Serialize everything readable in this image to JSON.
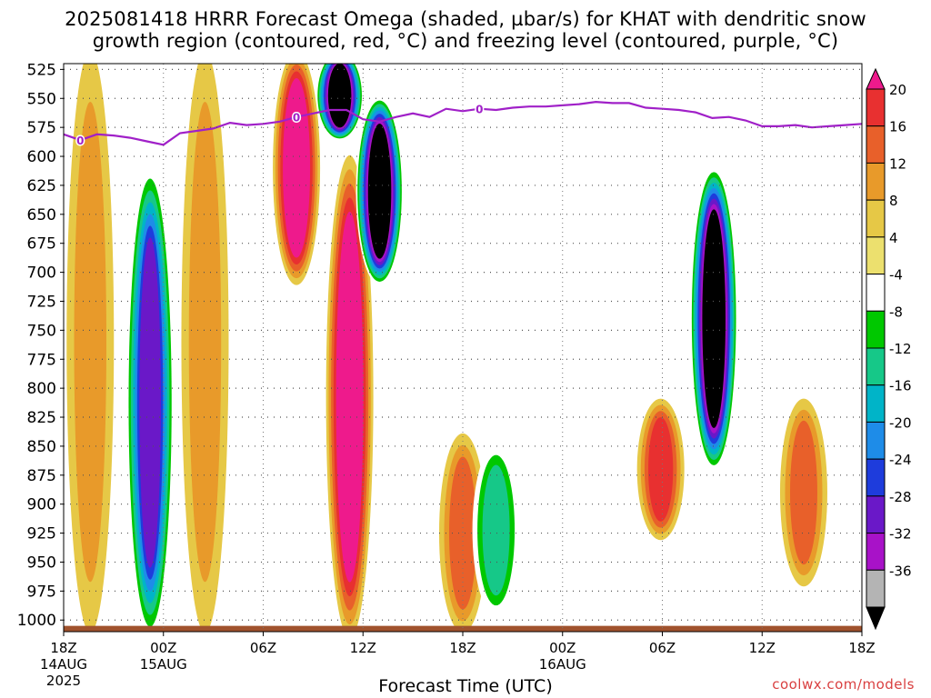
{
  "title_line1": "2025081418 HRRR Forecast Omega (shaded, µbar/s) for KHAT with dendritic snow",
  "title_line2": "growth region (contoured, red, °C) and freezing level (contoured, purple, °C)",
  "xlabel": "Forecast Time (UTC)",
  "credit": "coolwx.com/models",
  "chart_data": {
    "type": "heatmap",
    "title": "2025081418 HRRR Forecast Omega (shaded, µbar/s) for KHAT with dendritic snow growth region (contoured, red, °C) and freezing level (contoured, purple, °C)",
    "xlabel": "Forecast Time (UTC)",
    "ylabel": "",
    "x_range_hours": [
      0,
      48
    ],
    "x_ticks": [
      {
        "hour": 0,
        "label": "18Z",
        "sub": [
          "14AUG",
          "2025"
        ]
      },
      {
        "hour": 6,
        "label": "00Z",
        "sub": [
          "15AUG"
        ]
      },
      {
        "hour": 12,
        "label": "06Z",
        "sub": []
      },
      {
        "hour": 18,
        "label": "12Z",
        "sub": []
      },
      {
        "hour": 24,
        "label": "18Z",
        "sub": []
      },
      {
        "hour": 30,
        "label": "00Z",
        "sub": [
          "16AUG"
        ]
      },
      {
        "hour": 36,
        "label": "06Z",
        "sub": []
      },
      {
        "hour": 42,
        "label": "12Z",
        "sub": []
      },
      {
        "hour": 48,
        "label": "18Z",
        "sub": []
      }
    ],
    "y_axis": {
      "type": "pressure_hPa",
      "range": [
        1010,
        520
      ],
      "ticks": [
        525,
        550,
        575,
        600,
        625,
        650,
        675,
        700,
        725,
        750,
        775,
        800,
        825,
        850,
        875,
        900,
        925,
        950,
        975,
        1000
      ]
    },
    "grid": true,
    "colorbar": {
      "levels": [
        20,
        16,
        12,
        8,
        4,
        -4,
        -8,
        -12,
        -16,
        -20,
        -24,
        -28,
        -32,
        -36
      ],
      "colors": [
        "#ee1a8c",
        "#e83030",
        "#e8602a",
        "#e89a2a",
        "#e6c846",
        "#ece06e",
        "#ffffff",
        "#00c800",
        "#16c888",
        "#00b4c8",
        "#1e8ce8",
        "#1e3cdc",
        "#6a18c8",
        "#a812c8",
        "#b4b4b4",
        "#000000"
      ]
    },
    "omega_features": [
      {
        "hour": 1.6,
        "p_top": 520,
        "p_bottom": 1000,
        "value": 10
      },
      {
        "hour": 5.2,
        "p_top": 620,
        "p_bottom": 1005,
        "value": -30
      },
      {
        "hour": 8.5,
        "p_top": 520,
        "p_bottom": 1000,
        "value": 8
      },
      {
        "hour": 14.0,
        "p_top": 520,
        "p_bottom": 700,
        "value": 24
      },
      {
        "hour": 16.6,
        "p_top": 520,
        "p_bottom": 575,
        "value": -40
      },
      {
        "hour": 17.2,
        "p_top": 610,
        "p_bottom": 1005,
        "value": 24
      },
      {
        "hour": 19.0,
        "p_top": 560,
        "p_bottom": 700,
        "value": -40
      },
      {
        "hour": 24.0,
        "p_top": 850,
        "p_bottom": 1000,
        "value": 14
      },
      {
        "hour": 26.0,
        "p_top": 860,
        "p_bottom": 985,
        "value": -14
      },
      {
        "hour": 35.9,
        "p_top": 820,
        "p_bottom": 920,
        "value": 18
      },
      {
        "hour": 39.1,
        "p_top": 620,
        "p_bottom": 860,
        "value": -40
      },
      {
        "hour": 44.5,
        "p_top": 820,
        "p_bottom": 960,
        "value": 12
      }
    ],
    "freezing_level": {
      "label": "0",
      "hours": [
        0,
        1,
        2,
        3,
        4,
        5,
        6,
        7,
        8,
        9,
        10,
        11,
        12,
        13,
        14,
        15,
        16,
        17,
        18,
        19,
        20,
        21,
        22,
        23,
        24,
        25,
        26,
        27,
        28,
        29,
        30,
        31,
        32,
        33,
        34,
        35,
        36,
        37,
        38,
        39,
        40,
        41,
        42,
        43,
        44,
        45,
        46,
        47,
        48
      ],
      "pressure": [
        581,
        586,
        581,
        582,
        584,
        587,
        590,
        580,
        578,
        576,
        571,
        573,
        572,
        570,
        566,
        563,
        560,
        560,
        568,
        570,
        566,
        563,
        566,
        559,
        561,
        559,
        560,
        558,
        557,
        557,
        556,
        555,
        553,
        554,
        554,
        558,
        559,
        560,
        562,
        567,
        566,
        569,
        574,
        574,
        573,
        575,
        574,
        573,
        572
      ]
    },
    "terrain_band_hPa": [
      1005,
      1010
    ]
  }
}
